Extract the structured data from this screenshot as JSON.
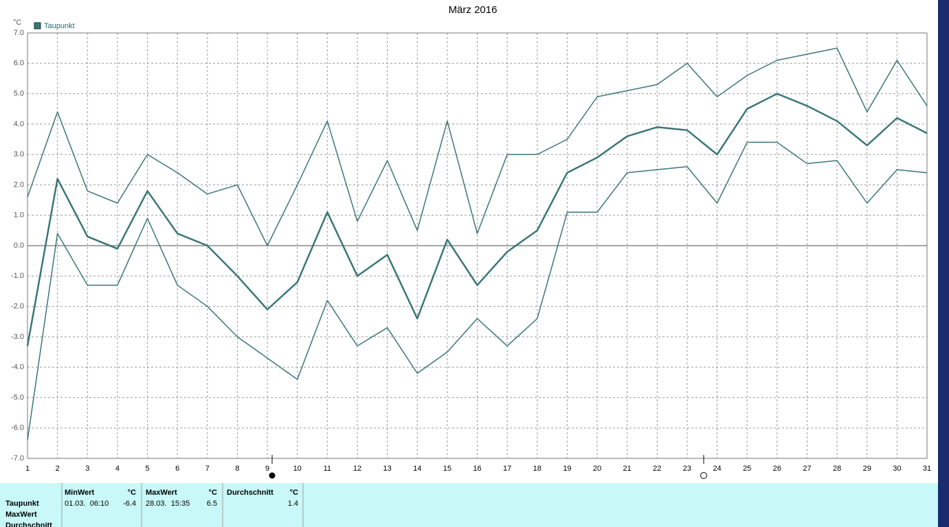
{
  "chart_data": {
    "type": "line",
    "title": "März 2016",
    "y_unit": "°C",
    "x": [
      1,
      2,
      3,
      4,
      5,
      6,
      7,
      8,
      9,
      10,
      11,
      12,
      13,
      14,
      15,
      16,
      17,
      18,
      19,
      20,
      21,
      22,
      23,
      24,
      25,
      26,
      27,
      28,
      29,
      30,
      31
    ],
    "xlim": [
      1,
      31
    ],
    "xticks": [
      1,
      2,
      3,
      4,
      5,
      6,
      7,
      8,
      9,
      10,
      11,
      12,
      13,
      14,
      15,
      16,
      17,
      18,
      19,
      20,
      21,
      22,
      23,
      24,
      25,
      26,
      27,
      28,
      29,
      30,
      31
    ],
    "ylim": [
      -7,
      7
    ],
    "yticks": [
      {
        "value": -7,
        "label": "-7.0"
      },
      {
        "value": -6,
        "label": "-6.0"
      },
      {
        "value": -5,
        "label": "-5.0"
      },
      {
        "value": -4,
        "label": "-4.0"
      },
      {
        "value": -3,
        "label": "-3.0"
      },
      {
        "value": -2,
        "label": "-2.0"
      },
      {
        "value": -1,
        "label": "-1.0"
      },
      {
        "value": 0,
        "label": "0.0"
      },
      {
        "value": 1,
        "label": "1.0"
      },
      {
        "value": 2,
        "label": "2.0"
      },
      {
        "value": 3,
        "label": "3.0"
      },
      {
        "value": 4,
        "label": "4.0"
      },
      {
        "value": 5,
        "label": "5.0"
      },
      {
        "value": 6,
        "label": "6.0"
      },
      {
        "value": 7,
        "label": "7.0"
      }
    ],
    "grid": true,
    "series": [
      {
        "name": "Taupunkt",
        "color": "#3a7676",
        "values": [
          -3.3,
          2.2,
          0.3,
          -0.1,
          1.8,
          0.4,
          0.0,
          -1.0,
          -2.1,
          -1.2,
          1.1,
          -1.0,
          -0.3,
          -2.4,
          0.2,
          -1.3,
          -0.2,
          0.5,
          2.4,
          2.9,
          3.6,
          3.9,
          3.8,
          3.0,
          4.5,
          5.0,
          4.6,
          4.1,
          3.3,
          4.2,
          3.7
        ]
      },
      {
        "color": "#3a7676",
        "values": [
          1.6,
          4.4,
          1.8,
          1.4,
          3.0,
          2.4,
          1.7,
          2.0,
          0.0,
          2.0,
          4.1,
          0.8,
          2.8,
          0.5,
          4.1,
          0.4,
          3.0,
          3.0,
          3.5,
          4.9,
          5.1,
          5.3,
          6.0,
          4.9,
          5.6,
          6.1,
          6.3,
          6.5,
          4.4,
          6.1,
          4.6
        ]
      },
      {
        "color": "#3a7676",
        "values": [
          -6.4,
          0.4,
          -1.3,
          -1.3,
          0.9,
          -1.3,
          -2.0,
          -3.0,
          -3.7,
          -4.4,
          -1.8,
          -3.3,
          -2.7,
          -4.2,
          -3.5,
          -2.4,
          -3.3,
          -2.4,
          1.1,
          1.1,
          2.4,
          2.5,
          2.6,
          1.4,
          3.4,
          3.4,
          2.7,
          2.8,
          1.4,
          2.5,
          2.4
        ]
      }
    ]
  },
  "table": {
    "row_labels": [
      "Taupunkt",
      "MaxWert",
      "Durchschnitt"
    ],
    "columns": [
      {
        "header": "MinWert",
        "unit": "°C",
        "time": "01.03.  06:10",
        "value": -6.4
      },
      {
        "header": "MaxWert",
        "unit": "°C",
        "time": "28.03.  15:35",
        "value": 6.5
      },
      {
        "header": "Durchschnitt",
        "unit": "°C",
        "value": 1.4
      }
    ]
  }
}
